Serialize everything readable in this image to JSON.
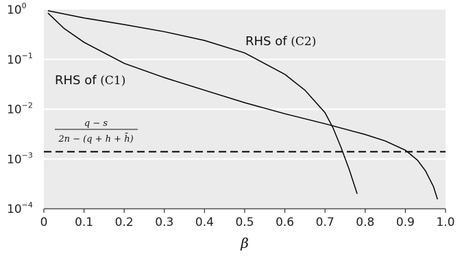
{
  "chart_data": {
    "type": "line",
    "xlabel": "β",
    "ylabel": "",
    "xlim": [
      0,
      1.0
    ],
    "ylim_log10": [
      -4,
      0
    ],
    "y_scale": "log",
    "grid": "horizontal",
    "background": "#ebebeb",
    "x_ticks": [
      "0",
      "0.1",
      "0.2",
      "0.3",
      "0.4",
      "0.5",
      "0.6",
      "0.7",
      "0.8",
      "0.9",
      "1.0"
    ],
    "y_ticks": [
      {
        "base": "10",
        "exp": "0"
      },
      {
        "base": "10",
        "exp": "−1"
      },
      {
        "base": "10",
        "exp": "−2"
      },
      {
        "base": "10",
        "exp": "−3"
      },
      {
        "base": "10",
        "exp": "−4"
      }
    ],
    "series": [
      {
        "label_prefix": "RHS of ",
        "label_ref": "(C1)",
        "style": "solid",
        "color": "#000000",
        "x": [
          0.01,
          0.05,
          0.1,
          0.2,
          0.3,
          0.4,
          0.5,
          0.6,
          0.7,
          0.8,
          0.85,
          0.9,
          0.93,
          0.95,
          0.97,
          0.98
        ],
        "y": [
          0.85,
          0.42,
          0.22,
          0.083,
          0.043,
          0.024,
          0.0135,
          0.0081,
          0.0051,
          0.0031,
          0.0023,
          0.0015,
          0.00095,
          0.00058,
          0.00028,
          0.000155
        ]
      },
      {
        "label_prefix": "RHS of ",
        "label_ref": "(C2)",
        "style": "solid",
        "color": "#000000",
        "x": [
          0.01,
          0.1,
          0.2,
          0.3,
          0.4,
          0.5,
          0.6,
          0.65,
          0.7,
          0.72,
          0.74,
          0.76,
          0.78
        ],
        "y": [
          0.95,
          0.68,
          0.5,
          0.36,
          0.24,
          0.135,
          0.05,
          0.024,
          0.0085,
          0.0042,
          0.0017,
          0.00062,
          0.0002
        ]
      },
      {
        "label": "(q−s) / (2n−(q+h+h̄))",
        "label_num": "q − s",
        "label_den": "2n − (q + h + h̄)",
        "style": "dashed",
        "color": "#000000",
        "x": [
          0,
          1.0
        ],
        "y": [
          0.0014,
          0.0014
        ]
      }
    ]
  }
}
